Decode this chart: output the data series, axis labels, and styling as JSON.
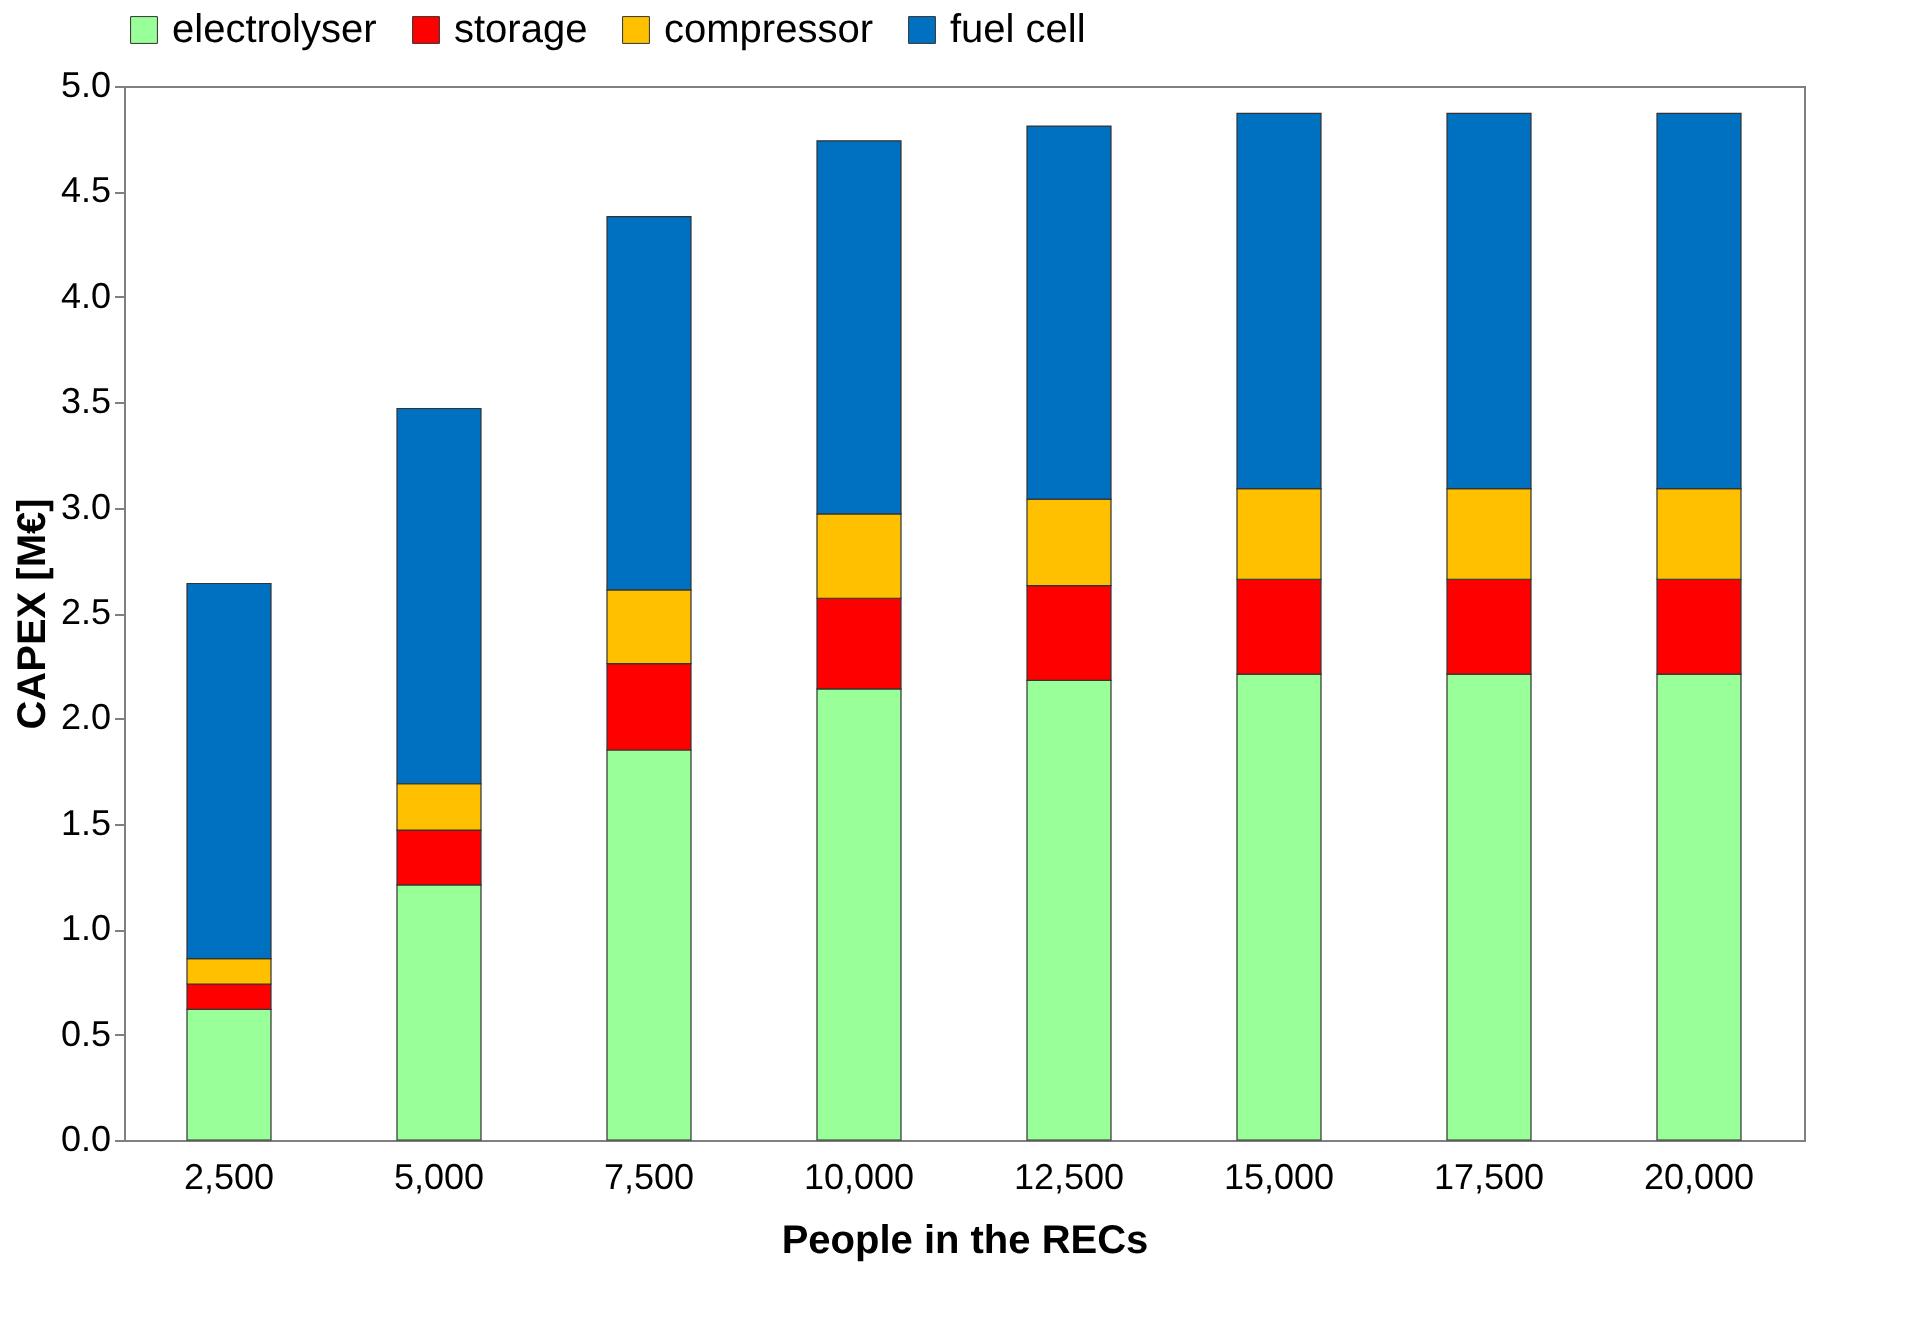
{
  "chart_data": {
    "type": "bar",
    "stacked": true,
    "xlabel": "People in the RECs",
    "ylabel": "CAPEX [M€]",
    "categories": [
      "2,500",
      "5,000",
      "7,500",
      "10,000",
      "12,500",
      "15,000",
      "17,500",
      "20,000"
    ],
    "series": [
      {
        "name": "electrolyser",
        "color": "#99ff99",
        "values": [
          0.62,
          1.21,
          1.85,
          2.14,
          2.18,
          2.21,
          2.21,
          2.21
        ]
      },
      {
        "name": "storage",
        "color": "#ff0000",
        "values": [
          0.12,
          0.26,
          0.41,
          0.43,
          0.45,
          0.45,
          0.45,
          0.45
        ]
      },
      {
        "name": "compressor",
        "color": "#ffc000",
        "values": [
          0.12,
          0.22,
          0.35,
          0.4,
          0.41,
          0.43,
          0.43,
          0.43
        ]
      },
      {
        "name": "fuel cell",
        "color": "#0070c0",
        "values": [
          1.78,
          1.78,
          1.77,
          1.77,
          1.77,
          1.78,
          1.78,
          1.78
        ]
      }
    ],
    "ylim": [
      0,
      5
    ],
    "yticks": [
      {
        "value": 0,
        "label": "0.0"
      },
      {
        "value": 0.5,
        "label": "0.5"
      },
      {
        "value": 1,
        "label": "1.0"
      },
      {
        "value": 1.5,
        "label": "1.5"
      },
      {
        "value": 2,
        "label": "2.0"
      },
      {
        "value": 2.5,
        "label": "2.5"
      },
      {
        "value": 3,
        "label": "3.0"
      },
      {
        "value": 3.5,
        "label": "3.5"
      },
      {
        "value": 4,
        "label": "4.0"
      },
      {
        "value": 4.5,
        "label": "4.5"
      },
      {
        "value": 5,
        "label": "5.0"
      }
    ],
    "grid": false,
    "legend": "top"
  }
}
